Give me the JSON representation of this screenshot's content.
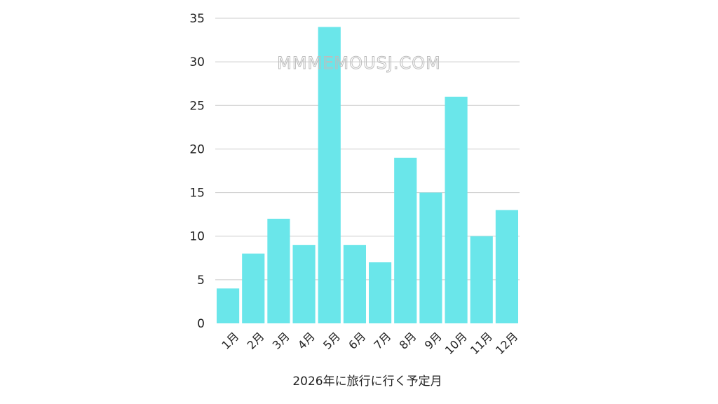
{
  "watermark": "MMMEMOUSJ.COM",
  "chart_data": {
    "type": "bar",
    "categories": [
      "1月",
      "2月",
      "3月",
      "4月",
      "5月",
      "6月",
      "7月",
      "8月",
      "9月",
      "10月",
      "11月",
      "12月"
    ],
    "values": [
      4,
      8,
      12,
      9,
      34,
      9,
      7,
      19,
      15,
      26,
      10,
      13
    ],
    "title": "",
    "xlabel": "2026年に旅行に行く予定月",
    "ylabel": "",
    "ylim": [
      0,
      35
    ],
    "yticks": [
      0,
      5,
      10,
      15,
      20,
      25,
      30,
      35
    ],
    "grid": true,
    "legend": "none",
    "bar_color": "#6ae6ea",
    "grid_color": "#cccccc"
  }
}
